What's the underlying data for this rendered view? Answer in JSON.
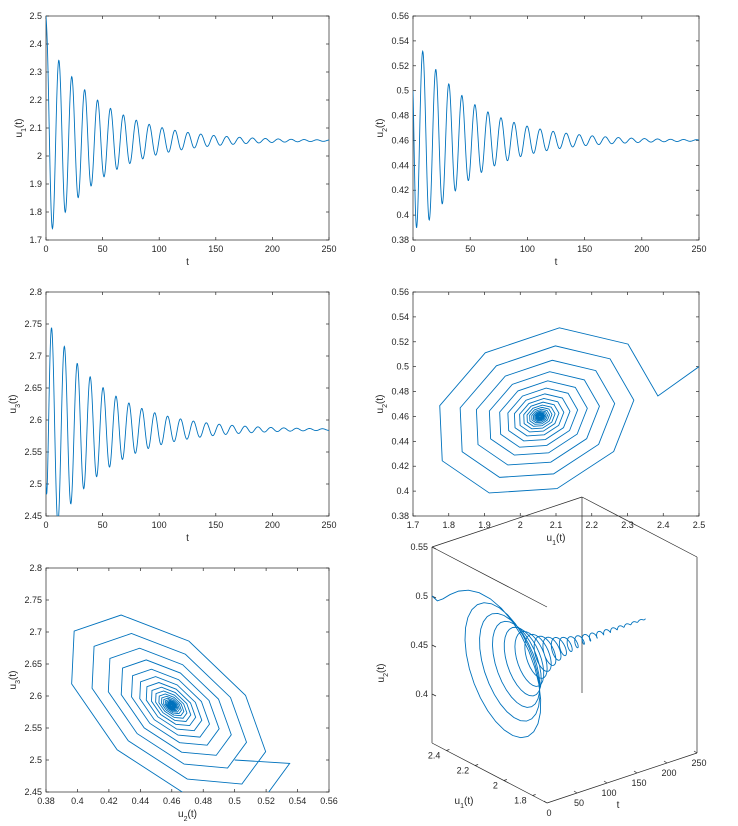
{
  "series_color": "#0072BD",
  "chart_data": [
    {
      "id": "p1",
      "type": "line",
      "xlabel": "t",
      "ylabel": "u",
      "ylabel_sub": "1",
      "ylabel_suffix": "(t)",
      "xlim": [
        0,
        250
      ],
      "ylim": [
        1.7,
        2.5
      ],
      "xticks": [
        "0",
        "50",
        "100",
        "150",
        "200",
        "250"
      ],
      "yticks": [
        "1.7",
        "1.8",
        "1.9",
        "2",
        "2.1",
        "2.2",
        "2.3",
        "2.4",
        "2.5"
      ],
      "series": [
        {
          "name": "u1(t)",
          "model": "time",
          "start": 2.5,
          "eq": 2.055,
          "amp": 0.36,
          "decay": 0.02,
          "period": 11.4,
          "phase": 0,
          "tend": 250
        }
      ]
    },
    {
      "id": "p2",
      "type": "line",
      "xlabel": "t",
      "ylabel": "u",
      "ylabel_sub": "2",
      "ylabel_suffix": "(t)",
      "xlim": [
        0,
        250
      ],
      "ylim": [
        0.38,
        0.56
      ],
      "xticks": [
        "0",
        "50",
        "100",
        "150",
        "200",
        "250"
      ],
      "yticks": [
        "0.38",
        "0.4",
        "0.42",
        "0.44",
        "0.46",
        "0.48",
        "0.5",
        "0.52",
        "0.54",
        "0.56"
      ],
      "series": [
        {
          "name": "u2(t)",
          "model": "time",
          "start": 0.5,
          "eq": 0.46,
          "amp": 0.085,
          "decay": 0.02,
          "period": 11.4,
          "phase": 1.57,
          "tend": 250
        }
      ]
    },
    {
      "id": "p3",
      "type": "line",
      "xlabel": "t",
      "ylabel": "u",
      "ylabel_sub": "3",
      "ylabel_suffix": "(t)",
      "xlim": [
        0,
        250
      ],
      "ylim": [
        2.45,
        2.8
      ],
      "xticks": [
        "0",
        "50",
        "100",
        "150",
        "200",
        "250"
      ],
      "yticks": [
        "2.45",
        "2.5",
        "2.55",
        "2.6",
        "2.65",
        "2.7",
        "2.75",
        "2.8"
      ],
      "series": [
        {
          "name": "u3(t)",
          "model": "time",
          "start": 2.5,
          "eq": 2.585,
          "amp": 0.18,
          "decay": 0.02,
          "period": 11.4,
          "phase": 3.6,
          "tend": 250
        }
      ]
    },
    {
      "id": "p4",
      "type": "line",
      "xlabel": "u",
      "xlabel_sub": "1",
      "xlabel_suffix": "(t)",
      "ylabel": "u",
      "ylabel_sub": "2",
      "ylabel_suffix": "(t)",
      "xlim": [
        1.7,
        2.5
      ],
      "ylim": [
        0.38,
        0.56
      ],
      "xticks": [
        "1.7",
        "1.8",
        "1.9",
        "2",
        "2.1",
        "2.2",
        "2.3",
        "2.4",
        "2.5"
      ],
      "yticks": [
        "0.38",
        "0.4",
        "0.42",
        "0.44",
        "0.46",
        "0.48",
        "0.5",
        "0.52",
        "0.54",
        "0.56"
      ],
      "series": [
        {
          "name": "u2 vs u1",
          "model": "phase",
          "start": [
            2.5,
            0.5
          ],
          "center": [
            2.055,
            0.46
          ],
          "radius": [
            0.33,
            0.075
          ],
          "phase": -1.35,
          "decay": 0.02,
          "step": 11.4,
          "period": 11.4,
          "tend": 250
        }
      ]
    },
    {
      "id": "p5",
      "type": "line",
      "xlabel": "u",
      "xlabel_sub": "2",
      "xlabel_suffix": "(t)",
      "ylabel": "u",
      "ylabel_sub": "3",
      "ylabel_suffix": "(t)",
      "xlim": [
        0.38,
        0.56
      ],
      "ylim": [
        2.45,
        2.8
      ],
      "xticks": [
        "0.38",
        "0.4",
        "0.42",
        "0.44",
        "0.46",
        "0.48",
        "0.5",
        "0.52",
        "0.54",
        "0.56"
      ],
      "yticks": [
        "2.45",
        "2.5",
        "2.55",
        "2.6",
        "2.65",
        "2.7",
        "2.75",
        "2.8"
      ],
      "series": [
        {
          "name": "u3 vs u2",
          "model": "phase",
          "start": [
            0.5,
            2.5
          ],
          "center": [
            0.46,
            2.585
          ],
          "radius": [
            0.075,
            0.165
          ],
          "phase": 2.15,
          "decay": 0.02,
          "step": 11.4,
          "period": 11.4,
          "tend": 250
        }
      ]
    },
    {
      "id": "p6",
      "type": "line3d",
      "xlabel": "t",
      "ylabel": "u",
      "ylabel_sub": "1",
      "ylabel_suffix": "(t)",
      "zlabel": "u",
      "zlabel_sub": "2",
      "zlabel_suffix": "(t)",
      "tlim": [
        0,
        250
      ],
      "u1lim": [
        1.7,
        2.5
      ],
      "zlim": [
        0.35,
        0.55
      ],
      "tticks": [
        "0",
        "50",
        "100",
        "150",
        "200",
        "250"
      ],
      "u1ticks": [
        "1.8",
        "2",
        "2.2",
        "2.4"
      ],
      "zticks": [
        "0.4",
        "0.45",
        "0.5",
        "0.55"
      ],
      "series": [
        {
          "name": "trajectory",
          "model": "spiral3d",
          "u1": {
            "start": 2.5,
            "eq": 2.055,
            "amp": 0.33,
            "phase": 0
          },
          "u2": {
            "start": 0.5,
            "eq": 0.46,
            "amp": 0.075,
            "phase": -1.35
          },
          "decay": 0.02,
          "period": 11.4,
          "tend": 250
        }
      ]
    }
  ]
}
